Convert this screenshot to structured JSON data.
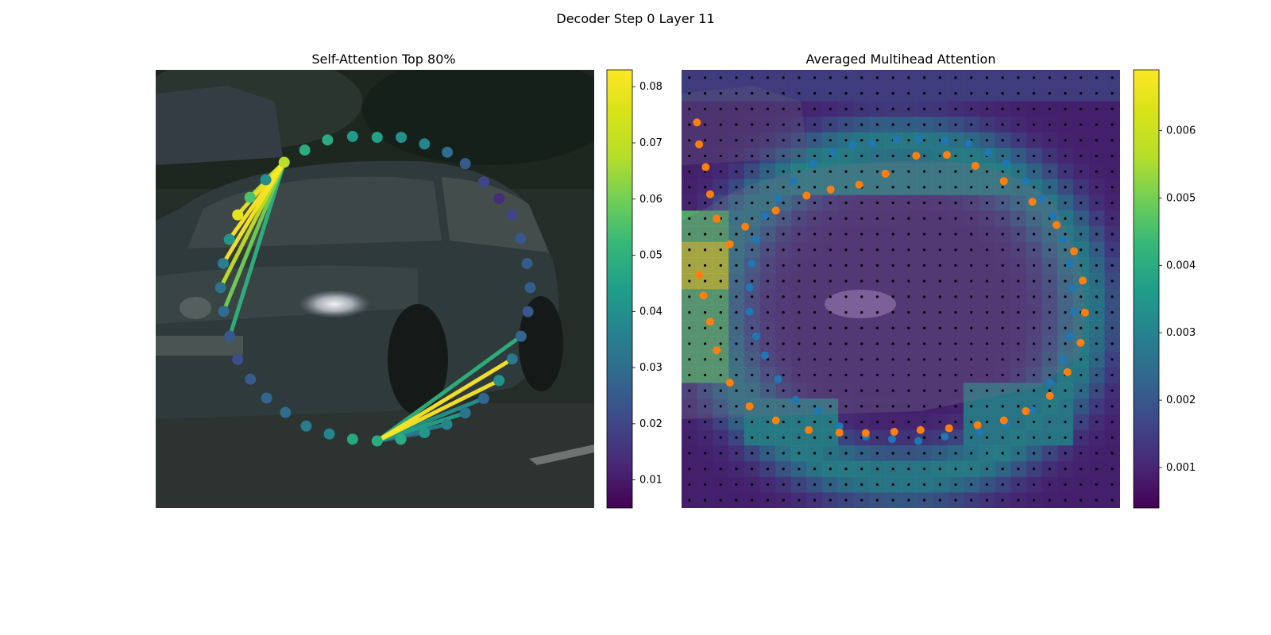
{
  "figure": {
    "title": "Decoder Step 0 Layer 11"
  },
  "chart_data": [
    {
      "type": "scatter",
      "title": "Self-Attention Top 80%",
      "xlim": [
        0,
        100
      ],
      "ylim": [
        0,
        100
      ],
      "colorbar": {
        "min": 0.005,
        "max": 0.083,
        "ticks": [
          0.01,
          0.02,
          0.03,
          0.04,
          0.05,
          0.06,
          0.07,
          0.08
        ],
        "tick_labels": [
          "0.01",
          "0.02",
          "0.03",
          "0.04",
          "0.05",
          "0.06",
          "0.07",
          "0.08"
        ]
      },
      "points": [
        {
          "x": 50.5,
          "y": 84.6,
          "v": 0.045
        },
        {
          "x": 56.0,
          "y": 84.6,
          "v": 0.04
        },
        {
          "x": 61.3,
          "y": 83.1,
          "v": 0.037
        },
        {
          "x": 66.5,
          "y": 81.2,
          "v": 0.03
        },
        {
          "x": 70.6,
          "y": 78.6,
          "v": 0.025
        },
        {
          "x": 74.8,
          "y": 74.4,
          "v": 0.02
        },
        {
          "x": 78.3,
          "y": 70.6,
          "v": 0.014
        },
        {
          "x": 81.3,
          "y": 66.9,
          "v": 0.02
        },
        {
          "x": 83.2,
          "y": 61.5,
          "v": 0.024
        },
        {
          "x": 84.7,
          "y": 55.8,
          "v": 0.025
        },
        {
          "x": 85.4,
          "y": 50.3,
          "v": 0.026
        },
        {
          "x": 84.9,
          "y": 44.8,
          "v": 0.024
        },
        {
          "x": 83.3,
          "y": 39.2,
          "v": 0.028
        },
        {
          "x": 81.3,
          "y": 34.0,
          "v": 0.033
        },
        {
          "x": 78.3,
          "y": 29.1,
          "v": 0.04
        },
        {
          "x": 74.8,
          "y": 25.0,
          "v": 0.028
        },
        {
          "x": 70.6,
          "y": 21.7,
          "v": 0.032
        },
        {
          "x": 66.4,
          "y": 19.1,
          "v": 0.037
        },
        {
          "x": 61.3,
          "y": 17.2,
          "v": 0.042
        },
        {
          "x": 55.9,
          "y": 15.7,
          "v": 0.048
        },
        {
          "x": 50.5,
          "y": 15.3,
          "v": 0.048
        },
        {
          "x": 44.9,
          "y": 15.7,
          "v": 0.047
        },
        {
          "x": 39.6,
          "y": 16.9,
          "v": 0.037
        },
        {
          "x": 34.3,
          "y": 18.7,
          "v": 0.034
        },
        {
          "x": 29.6,
          "y": 21.8,
          "v": 0.03
        },
        {
          "x": 25.3,
          "y": 25.1,
          "v": 0.028
        },
        {
          "x": 21.6,
          "y": 29.4,
          "v": 0.025
        },
        {
          "x": 18.7,
          "y": 33.9,
          "v": 0.022
        },
        {
          "x": 16.9,
          "y": 39.2,
          "v": 0.024
        },
        {
          "x": 15.5,
          "y": 44.9,
          "v": 0.03
        },
        {
          "x": 14.8,
          "y": 50.3,
          "v": 0.032
        },
        {
          "x": 15.4,
          "y": 55.8,
          "v": 0.035
        },
        {
          "x": 16.8,
          "y": 61.3,
          "v": 0.042
        },
        {
          "x": 18.7,
          "y": 66.9,
          "v": 0.078
        },
        {
          "x": 21.5,
          "y": 70.9,
          "v": 0.055
        },
        {
          "x": 25.1,
          "y": 74.9,
          "v": 0.04
        },
        {
          "x": 29.3,
          "y": 78.9,
          "v": 0.068
        },
        {
          "x": 34.0,
          "y": 81.7,
          "v": 0.048
        },
        {
          "x": 39.2,
          "y": 84.0,
          "v": 0.048
        },
        {
          "x": 44.9,
          "y": 84.8,
          "v": 0.043
        }
      ],
      "links": [
        {
          "from": 36,
          "to": 32,
          "v": 0.083
        },
        {
          "from": 36,
          "to": 31,
          "v": 0.083
        },
        {
          "from": 36,
          "to": 33,
          "v": 0.08
        },
        {
          "from": 36,
          "to": 30,
          "v": 0.07
        },
        {
          "from": 36,
          "to": 34,
          "v": 0.07
        },
        {
          "from": 36,
          "to": 35,
          "v": 0.065
        },
        {
          "from": 36,
          "to": 29,
          "v": 0.06
        },
        {
          "from": 36,
          "to": 28,
          "v": 0.05
        },
        {
          "from": 20,
          "to": 13,
          "v": 0.083
        },
        {
          "from": 20,
          "to": 14,
          "v": 0.082
        },
        {
          "from": 20,
          "to": 12,
          "v": 0.05
        },
        {
          "from": 20,
          "to": 16,
          "v": 0.045
        },
        {
          "from": 20,
          "to": 15,
          "v": 0.04
        },
        {
          "from": 20,
          "to": 17,
          "v": 0.035
        },
        {
          "from": 20,
          "to": 18,
          "v": 0.03
        }
      ]
    },
    {
      "type": "heatmap",
      "title": "Averaged Multihead Attention",
      "xlim": [
        0,
        100
      ],
      "ylim": [
        0,
        100
      ],
      "colorbar": {
        "min": 0.0004,
        "max": 0.0069,
        "ticks": [
          0.001,
          0.002,
          0.003,
          0.004,
          0.005,
          0.006
        ],
        "tick_labels": [
          "0.001",
          "0.002",
          "0.003",
          "0.004",
          "0.005",
          "0.006"
        ]
      },
      "grid": {
        "cols": 28,
        "rows": 28
      },
      "blue_points": [
        {
          "x": 43.5,
          "y": 83.3
        },
        {
          "x": 49.0,
          "y": 84.0
        },
        {
          "x": 54.1,
          "y": 84.2
        },
        {
          "x": 60.0,
          "y": 83.9
        },
        {
          "x": 65.5,
          "y": 83.2
        },
        {
          "x": 70.0,
          "y": 81.1
        },
        {
          "x": 74.0,
          "y": 78.6
        },
        {
          "x": 78.5,
          "y": 74.6
        },
        {
          "x": 82.0,
          "y": 70.6
        },
        {
          "x": 84.7,
          "y": 66.7
        },
        {
          "x": 87.0,
          "y": 61.3
        },
        {
          "x": 88.5,
          "y": 55.8
        },
        {
          "x": 89.2,
          "y": 50.2
        },
        {
          "x": 89.5,
          "y": 44.8
        },
        {
          "x": 88.5,
          "y": 39.2
        },
        {
          "x": 87.0,
          "y": 33.9
        },
        {
          "x": 84.0,
          "y": 28.6
        },
        {
          "x": 80.0,
          "y": 22.4
        },
        {
          "x": 74.0,
          "y": 19.2
        },
        {
          "x": 68.0,
          "y": 17.4
        },
        {
          "x": 60.0,
          "y": 16.3
        },
        {
          "x": 54.0,
          "y": 15.3
        },
        {
          "x": 48.0,
          "y": 15.7
        },
        {
          "x": 42.0,
          "y": 16.3
        },
        {
          "x": 36.0,
          "y": 18.6
        },
        {
          "x": 31.0,
          "y": 22.2
        },
        {
          "x": 26.0,
          "y": 24.7
        },
        {
          "x": 22.0,
          "y": 29.4
        },
        {
          "x": 19.0,
          "y": 34.8
        },
        {
          "x": 17.0,
          "y": 39.2
        },
        {
          "x": 15.5,
          "y": 44.8
        },
        {
          "x": 15.5,
          "y": 50.3
        },
        {
          "x": 16.0,
          "y": 55.8
        },
        {
          "x": 17.0,
          "y": 61.3
        },
        {
          "x": 19.0,
          "y": 66.7
        },
        {
          "x": 22.0,
          "y": 70.6
        },
        {
          "x": 25.5,
          "y": 74.6
        },
        {
          "x": 30.0,
          "y": 78.5
        },
        {
          "x": 34.5,
          "y": 81.2
        },
        {
          "x": 39.0,
          "y": 82.9
        }
      ],
      "orange_points": [
        {
          "x": 4.0,
          "y": 53.2
        },
        {
          "x": 5.0,
          "y": 48.5
        },
        {
          "x": 6.5,
          "y": 42.5
        },
        {
          "x": 8.0,
          "y": 36.0
        },
        {
          "x": 11.0,
          "y": 28.6
        },
        {
          "x": 15.5,
          "y": 23.2
        },
        {
          "x": 21.5,
          "y": 20.0
        },
        {
          "x": 29.0,
          "y": 17.8
        },
        {
          "x": 36.0,
          "y": 17.2
        },
        {
          "x": 42.0,
          "y": 17.1
        },
        {
          "x": 48.5,
          "y": 17.4
        },
        {
          "x": 54.5,
          "y": 17.8
        },
        {
          "x": 61.0,
          "y": 18.2
        },
        {
          "x": 67.5,
          "y": 18.9
        },
        {
          "x": 73.5,
          "y": 20.0
        },
        {
          "x": 78.5,
          "y": 22.1
        },
        {
          "x": 84.0,
          "y": 25.6
        },
        {
          "x": 88.0,
          "y": 31.0
        },
        {
          "x": 91.0,
          "y": 37.7
        },
        {
          "x": 92.0,
          "y": 44.6
        },
        {
          "x": 91.5,
          "y": 51.9
        },
        {
          "x": 89.5,
          "y": 58.6
        },
        {
          "x": 85.5,
          "y": 64.6
        },
        {
          "x": 80.0,
          "y": 69.9
        },
        {
          "x": 73.5,
          "y": 74.6
        },
        {
          "x": 67.0,
          "y": 78.1
        },
        {
          "x": 60.5,
          "y": 80.6
        },
        {
          "x": 53.5,
          "y": 80.4
        },
        {
          "x": 46.5,
          "y": 76.3
        },
        {
          "x": 40.5,
          "y": 73.8
        },
        {
          "x": 34.0,
          "y": 72.7
        },
        {
          "x": 28.5,
          "y": 71.3
        },
        {
          "x": 21.5,
          "y": 67.9
        },
        {
          "x": 14.5,
          "y": 64.2
        },
        {
          "x": 11.0,
          "y": 60.2
        },
        {
          "x": 8.0,
          "y": 66.0
        },
        {
          "x": 6.5,
          "y": 71.6
        },
        {
          "x": 5.5,
          "y": 77.8
        },
        {
          "x": 4.0,
          "y": 83.0
        },
        {
          "x": 3.5,
          "y": 88.0
        }
      ]
    }
  ]
}
